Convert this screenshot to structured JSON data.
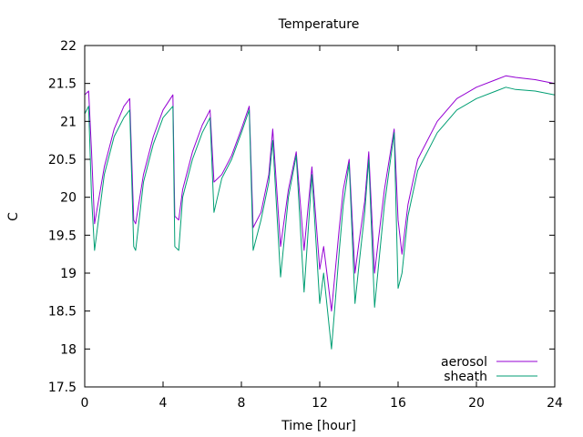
{
  "chart_data": {
    "type": "line",
    "title": "Temperature",
    "xlabel": "Time [hour]",
    "ylabel": "C",
    "xlim": [
      0,
      24
    ],
    "ylim": [
      17.5,
      22
    ],
    "xticks": [
      0,
      4,
      8,
      12,
      16,
      20,
      24
    ],
    "yticks": [
      17.5,
      18,
      18.5,
      19,
      19.5,
      20,
      20.5,
      21,
      21.5,
      22
    ],
    "xtick_labels": [
      "0",
      "4",
      "8",
      "12",
      "16",
      "20",
      "24"
    ],
    "ytick_labels": [
      "17.5",
      "18",
      "18.5",
      "19",
      "19.5",
      "20",
      "20.5",
      "21",
      "21.5",
      "22"
    ],
    "grid": false,
    "legend": "bottom-right",
    "series": [
      {
        "name": "aerosol",
        "color": "#9400d3",
        "x": [
          0,
          0.2,
          0.35,
          0.5,
          1.0,
          1.5,
          2.0,
          2.3,
          2.5,
          2.6,
          3.0,
          3.5,
          4.0,
          4.5,
          4.6,
          4.8,
          5.0,
          5.5,
          6.0,
          6.4,
          6.6,
          7.0,
          7.5,
          8.0,
          8.4,
          8.6,
          9.0,
          9.4,
          9.6,
          10.0,
          10.4,
          10.8,
          11.2,
          11.6,
          12.0,
          12.2,
          12.6,
          13.0,
          13.2,
          13.5,
          13.8,
          14.0,
          14.3,
          14.5,
          14.8,
          15.0,
          15.3,
          15.8,
          16.0,
          16.2,
          16.5,
          17.0,
          18.0,
          19.0,
          20.0,
          21.0,
          21.5,
          22.0,
          23.0,
          24.0
        ],
        "y": [
          21.35,
          21.4,
          20.6,
          19.65,
          20.4,
          20.9,
          21.2,
          21.3,
          19.7,
          19.65,
          20.3,
          20.8,
          21.15,
          21.35,
          19.75,
          19.7,
          20.1,
          20.6,
          20.95,
          21.15,
          20.2,
          20.3,
          20.55,
          20.9,
          21.2,
          19.6,
          19.8,
          20.3,
          20.9,
          19.35,
          20.1,
          20.6,
          19.3,
          20.4,
          19.05,
          19.35,
          18.5,
          19.6,
          20.1,
          20.5,
          19.0,
          19.4,
          19.95,
          20.6,
          19.0,
          19.45,
          20.1,
          20.9,
          19.7,
          19.25,
          19.9,
          20.5,
          21.0,
          21.3,
          21.45,
          21.55,
          21.6,
          21.58,
          21.55,
          21.5
        ]
      },
      {
        "name": "sheath",
        "color": "#009e73",
        "x": [
          0,
          0.2,
          0.35,
          0.5,
          1.0,
          1.5,
          2.0,
          2.3,
          2.5,
          2.6,
          3.0,
          3.5,
          4.0,
          4.5,
          4.6,
          4.8,
          5.0,
          5.5,
          6.0,
          6.4,
          6.6,
          7.0,
          7.5,
          8.0,
          8.4,
          8.6,
          9.0,
          9.4,
          9.6,
          10.0,
          10.4,
          10.8,
          11.2,
          11.6,
          12.0,
          12.2,
          12.6,
          13.0,
          13.2,
          13.5,
          13.8,
          14.0,
          14.3,
          14.5,
          14.8,
          15.0,
          15.3,
          15.8,
          16.0,
          16.2,
          16.5,
          17.0,
          18.0,
          19.0,
          20.0,
          21.0,
          21.5,
          22.0,
          23.0,
          24.0
        ],
        "y": [
          21.1,
          21.2,
          20.0,
          19.3,
          20.3,
          20.8,
          21.05,
          21.15,
          19.35,
          19.3,
          20.2,
          20.7,
          21.05,
          21.2,
          19.35,
          19.3,
          20.0,
          20.5,
          20.85,
          21.05,
          19.8,
          20.25,
          20.5,
          20.85,
          21.15,
          19.3,
          19.7,
          20.2,
          20.75,
          18.95,
          20.0,
          20.55,
          18.75,
          20.3,
          18.6,
          19.0,
          18.0,
          19.3,
          19.9,
          20.45,
          18.6,
          19.1,
          19.8,
          20.5,
          18.55,
          19.1,
          19.9,
          20.85,
          18.8,
          19.0,
          19.75,
          20.35,
          20.85,
          21.15,
          21.3,
          21.4,
          21.45,
          21.42,
          21.4,
          21.35
        ]
      }
    ]
  }
}
